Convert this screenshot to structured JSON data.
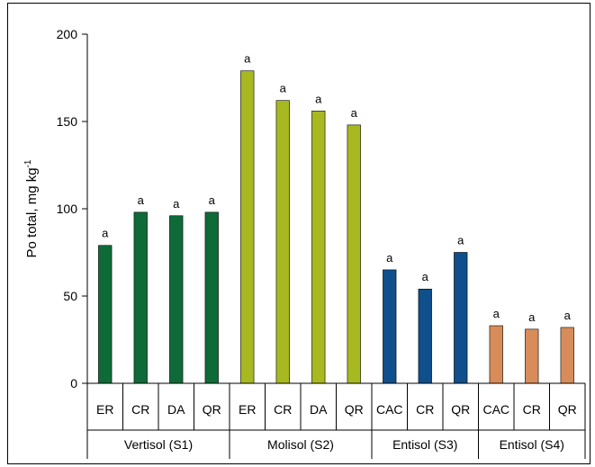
{
  "chart_data": {
    "type": "bar",
    "ylabel": "Po total, mg kg",
    "ylabel_superscript": "-1",
    "ylim": [
      0,
      200
    ],
    "yticks": [
      0,
      50,
      100,
      150,
      200
    ],
    "groups": [
      {
        "name": "Vertisol (S1)",
        "color": "#0e6b38",
        "categories": [
          "ER",
          "CR",
          "DA",
          "QR"
        ],
        "values": [
          79,
          98,
          96,
          98
        ],
        "labels": [
          "a",
          "a",
          "a",
          "a"
        ]
      },
      {
        "name": "Molisol (S2)",
        "color": "#a8b820",
        "categories": [
          "ER",
          "CR",
          "DA",
          "QR"
        ],
        "values": [
          179,
          162,
          156,
          148
        ],
        "labels": [
          "a",
          "a",
          "a",
          "a"
        ]
      },
      {
        "name": "Entisol (S3)",
        "color": "#0f4f8c",
        "categories": [
          "CAC",
          "CR",
          "QR"
        ],
        "values": [
          65,
          54,
          75
        ],
        "labels": [
          "a",
          "a",
          "a"
        ]
      },
      {
        "name": "Entisol (S4)",
        "color": "#d78c5a",
        "categories": [
          "CAC",
          "CR",
          "QR"
        ],
        "values": [
          33,
          31,
          32
        ],
        "labels": [
          "a",
          "a",
          "a"
        ]
      }
    ]
  }
}
